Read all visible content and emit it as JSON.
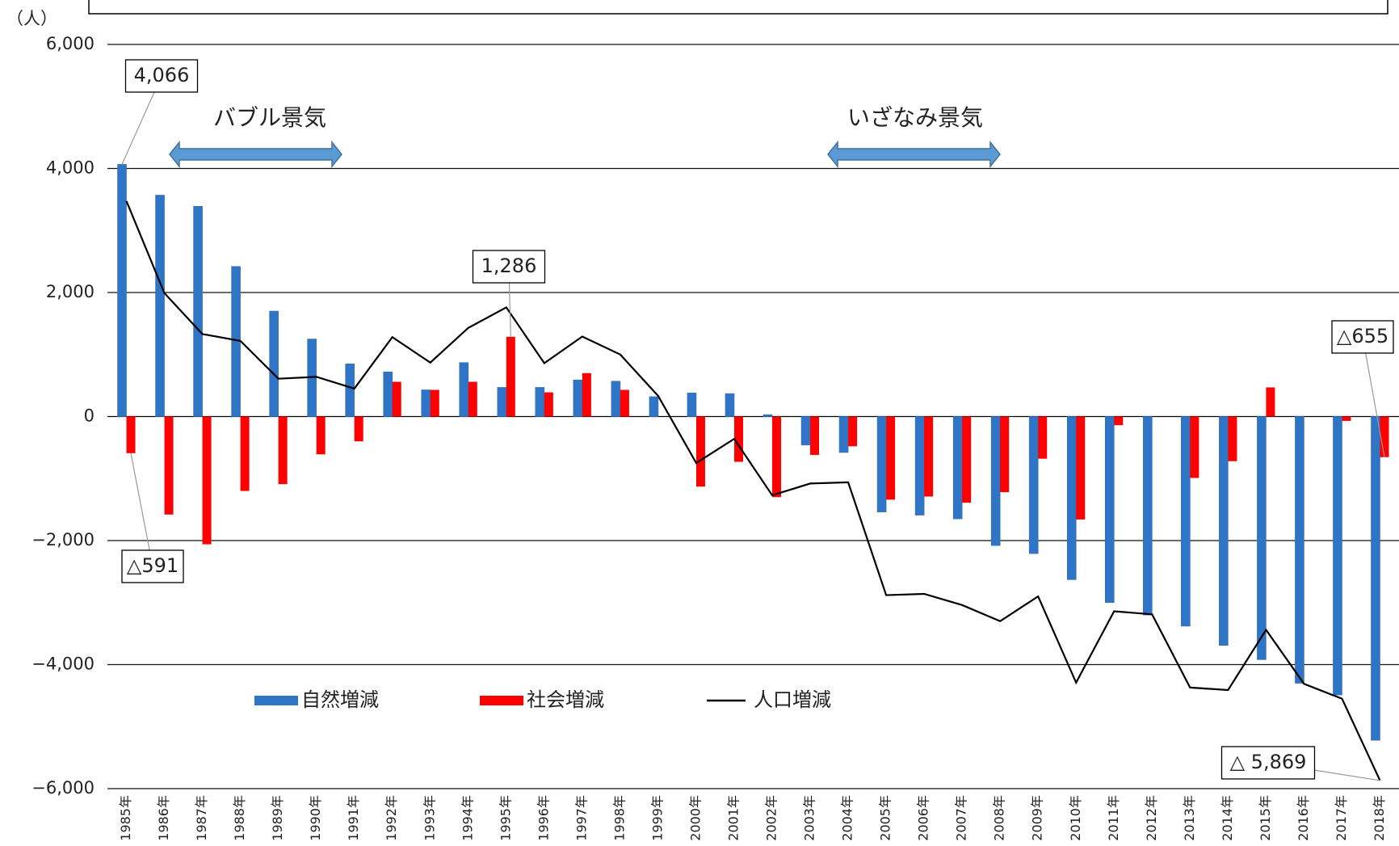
{
  "chart_data": {
    "type": "bar",
    "y_unit": "（人）",
    "categories": [
      "1985年",
      "1986年",
      "1987年",
      "1988年",
      "1989年",
      "1990年",
      "1991年",
      "1992年",
      "1993年",
      "1994年",
      "1995年",
      "1996年",
      "1997年",
      "1998年",
      "1999年",
      "2000年",
      "2001年",
      "2002年",
      "2003年",
      "2004年",
      "2005年",
      "2006年",
      "2007年",
      "2008年",
      "2009年",
      "2010年",
      "2011年",
      "2012年",
      "2013年",
      "2014年",
      "2015年",
      "2016年",
      "2017年",
      "2018年"
    ],
    "series": [
      {
        "name": "自然増減",
        "type": "bar",
        "color": "#2e75c8",
        "values": [
          4066,
          3570,
          3390,
          2420,
          1700,
          1250,
          850,
          720,
          430,
          870,
          470,
          470,
          590,
          570,
          320,
          380,
          370,
          30,
          -460,
          -580,
          -1540,
          -1590,
          -1650,
          -2080,
          -2210,
          -2630,
          -3000,
          -3200,
          -3380,
          -3690,
          -3920,
          -4300,
          -4490,
          -5220
        ],
        "value_labels": [
          "4,066",
          null,
          null,
          null,
          null,
          null,
          null,
          null,
          null,
          null,
          null,
          null,
          null,
          null,
          null,
          null,
          null,
          null,
          null,
          null,
          null,
          null,
          null,
          null,
          null,
          null,
          null,
          null,
          null,
          null,
          null,
          null,
          null,
          null
        ]
      },
      {
        "name": "社会増減",
        "type": "bar",
        "color": "#ff0000",
        "values": [
          -591,
          -1580,
          -2060,
          -1200,
          -1090,
          -610,
          -400,
          560,
          430,
          560,
          1286,
          390,
          700,
          430,
          0,
          -1130,
          -730,
          -1300,
          -620,
          -480,
          -1340,
          -1290,
          -1390,
          -1220,
          -680,
          -1660,
          -140,
          0,
          -990,
          -720,
          470,
          0,
          -70,
          -655
        ],
        "value_labels": [
          "△591",
          null,
          null,
          null,
          null,
          null,
          null,
          null,
          null,
          null,
          "1,286",
          null,
          null,
          null,
          null,
          null,
          null,
          null,
          null,
          null,
          null,
          null,
          null,
          null,
          null,
          null,
          null,
          null,
          null,
          null,
          null,
          null,
          null,
          "△655"
        ]
      },
      {
        "name": "人口増減",
        "type": "line",
        "color": "#000000",
        "values": [
          3475,
          1990,
          1330,
          1220,
          610,
          640,
          450,
          1280,
          870,
          1430,
          1760,
          860,
          1290,
          1000,
          330,
          -750,
          -360,
          -1270,
          -1080,
          -1060,
          -2880,
          -2860,
          -3040,
          -3300,
          -2900,
          -4290,
          -3140,
          -3190,
          -4370,
          -4410,
          -3440,
          -4310,
          -4550,
          -5869
        ],
        "value_labels": [
          null,
          null,
          null,
          null,
          null,
          null,
          null,
          null,
          null,
          null,
          null,
          null,
          null,
          null,
          null,
          null,
          null,
          null,
          null,
          null,
          null,
          null,
          null,
          null,
          null,
          null,
          null,
          null,
          null,
          null,
          null,
          null,
          null,
          "△ 5,869"
        ]
      }
    ],
    "ylim": [
      -6000,
      6000
    ],
    "yticks": [
      {
        "value": -6000,
        "label": "−6,000"
      },
      {
        "value": -4000,
        "label": "−4,000"
      },
      {
        "value": -2000,
        "label": "−2,000"
      },
      0,
      {
        "value": 2000,
        "label": "2,000"
      },
      {
        "value": 4000,
        "label": "4,000"
      },
      {
        "value": 6000,
        "label": "6,000"
      }
    ],
    "grid": true,
    "annotations": [
      "バブル景気",
      "いざなみ景気"
    ]
  }
}
